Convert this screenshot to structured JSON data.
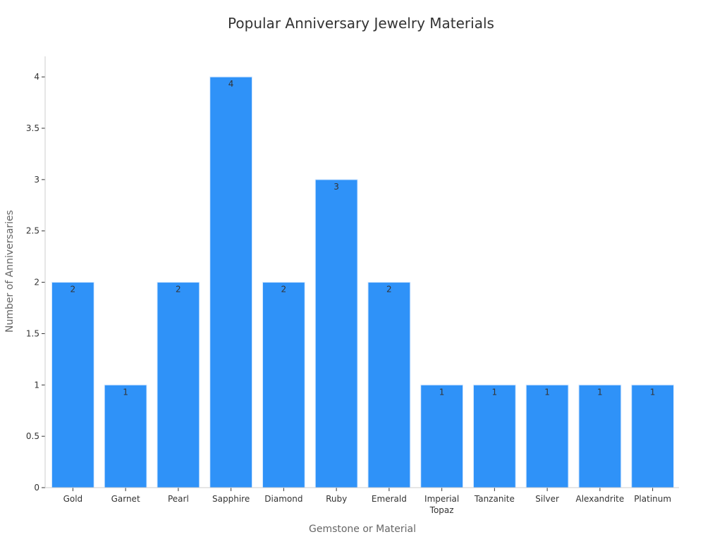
{
  "chart_data": {
    "type": "bar",
    "title": "Popular Anniversary Jewelry Materials",
    "xlabel": "Gemstone or Material",
    "ylabel": "Number of Anniversaries",
    "categories": [
      "Gold",
      "Garnet",
      "Pearl",
      "Sapphire",
      "Diamond",
      "Ruby",
      "Emerald",
      "Imperial Topaz",
      "Tanzanite",
      "Silver",
      "Alexandrite",
      "Platinum"
    ],
    "values": [
      2,
      1,
      2,
      4,
      2,
      3,
      2,
      1,
      1,
      1,
      1,
      1
    ],
    "ylim": [
      0,
      4.2
    ],
    "yticks": [
      0,
      0.5,
      1,
      1.5,
      2,
      2.5,
      3,
      3.5,
      4
    ],
    "ytick_labels": [
      "0",
      "0.5",
      "1",
      "1.5",
      "2",
      "2.5",
      "3",
      "3.5",
      "4"
    ],
    "grid": false,
    "bar_color": "#2f92f8",
    "data_labels": [
      "2",
      "1",
      "2",
      "4",
      "2",
      "3",
      "2",
      "1",
      "1",
      "1",
      "1",
      "1"
    ]
  }
}
